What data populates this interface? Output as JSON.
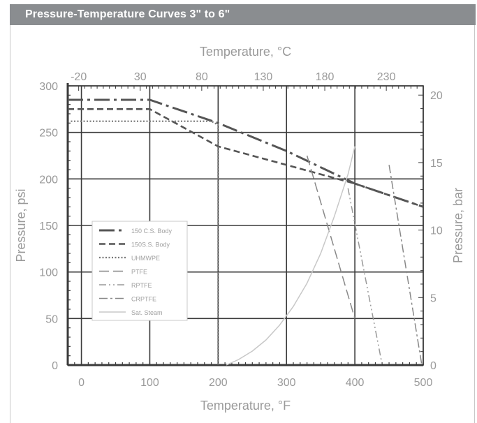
{
  "header": {
    "title": "Pressure-Temperature Curves 3\" to 6\""
  },
  "chart_data": {
    "type": "line",
    "xlabel": "Temperature, °F",
    "x2label": "Temperature, °C",
    "ylabel": "Pressure, psi",
    "y2label": "Pressure, bar",
    "xlim": [
      -20,
      500
    ],
    "ylim": [
      0,
      300
    ],
    "y2lim": [
      0,
      20.684
    ],
    "xticks": [
      0,
      100,
      200,
      300,
      400,
      500
    ],
    "yticks": [
      0,
      50,
      100,
      150,
      200,
      250,
      300
    ],
    "x2ticks": [
      -20,
      30,
      80,
      130,
      180,
      230
    ],
    "y2ticks": [
      0,
      5,
      10,
      15,
      20
    ],
    "grid": true,
    "legend_position": "left",
    "series": [
      {
        "name": "150 C.S. Body",
        "style": "dash-dot-heavy",
        "color": "#555555",
        "x": [
          -20,
          100,
          200,
          300,
          400,
          500
        ],
        "y": [
          285,
          285,
          260,
          230,
          195,
          170
        ]
      },
      {
        "name": "150S.S. Body",
        "style": "dash",
        "color": "#555555",
        "x": [
          -20,
          100,
          200,
          300,
          400,
          500
        ],
        "y": [
          275,
          275,
          235,
          215,
          195,
          170
        ]
      },
      {
        "name": "UHMWPE",
        "style": "dot",
        "color": "#777777",
        "x": [
          -20,
          190,
          200,
          200
        ],
        "y": [
          262,
          262,
          258,
          0
        ]
      },
      {
        "name": "PTFE",
        "style": "long-dash",
        "color": "#888888",
        "x": [
          330,
          400
        ],
        "y": [
          225,
          50
        ]
      },
      {
        "name": "RPTFE",
        "style": "dash-dot-dot",
        "color": "#999999",
        "x": [
          390,
          440
        ],
        "y": [
          190,
          0
        ]
      },
      {
        "name": "CRPTFE",
        "style": "dash-dot",
        "color": "#888888",
        "x": [
          450,
          498
        ],
        "y": [
          215,
          0
        ]
      },
      {
        "name": "Sat. Steam",
        "style": "solid",
        "color": "#c8c8c8",
        "x": [
          212,
          230,
          250,
          270,
          290,
          310,
          330,
          350,
          370,
          390,
          400
        ],
        "y": [
          0,
          6,
          15,
          27,
          43,
          63,
          88,
          120,
          160,
          205,
          235
        ]
      }
    ]
  }
}
